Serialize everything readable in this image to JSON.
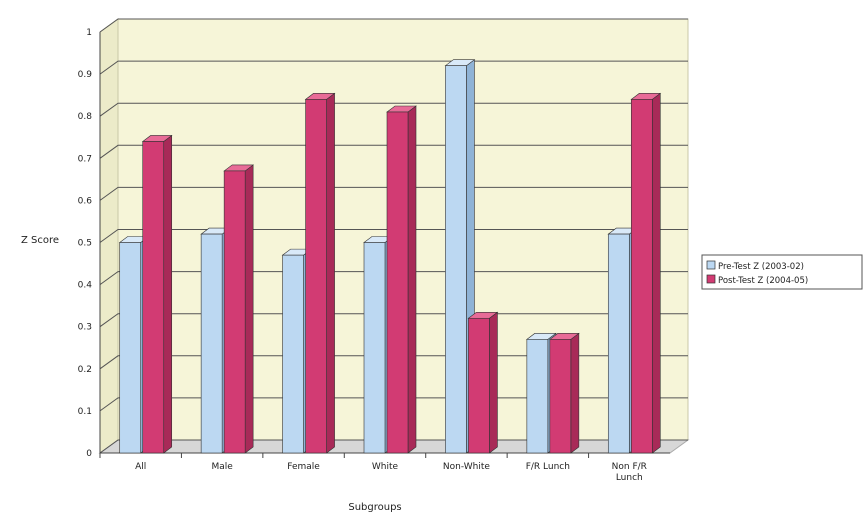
{
  "chart_data": {
    "type": "bar",
    "title": "",
    "xlabel": "Subgroups",
    "ylabel": "Z Score",
    "categories": [
      "All",
      "Male",
      "Female",
      "White",
      "Non-White",
      "F/R Lunch",
      "Non F/R\nLunch"
    ],
    "series": [
      {
        "name": "Pre-Test Z (2003-02)",
        "values": [
          0.5,
          0.52,
          0.47,
          0.5,
          0.92,
          0.27,
          0.52
        ]
      },
      {
        "name": "Post-Test Z (2004-05)",
        "values": [
          0.74,
          0.67,
          0.84,
          0.81,
          0.32,
          0.27,
          0.84
        ]
      }
    ],
    "ylim": [
      0,
      1
    ],
    "yticks": [
      "0",
      "0.1",
      "0.2",
      "0.3",
      "0.4",
      "0.5",
      "0.6",
      "0.7",
      "0.8",
      "0.9",
      "1"
    ],
    "grid": true,
    "legend_position": "right",
    "colors": {
      "series": [
        "#bcd8f2",
        "#d23b73"
      ],
      "series_side": [
        "#8fb3d6",
        "#a82a58"
      ],
      "series_top": [
        "#d9e9f8",
        "#e86b97"
      ],
      "plot_background": "#f6f5d8",
      "floor": "#d7d7d7",
      "gridline": "#555555"
    }
  }
}
